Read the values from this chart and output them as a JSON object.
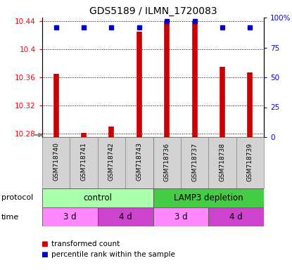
{
  "title": "GDS5189 / ILMN_1720083",
  "samples": [
    "GSM718740",
    "GSM718741",
    "GSM718742",
    "GSM718743",
    "GSM718736",
    "GSM718737",
    "GSM718738",
    "GSM718739"
  ],
  "red_values": [
    10.365,
    10.281,
    10.29,
    10.425,
    10.44,
    10.44,
    10.375,
    10.367
  ],
  "blue_values": [
    92,
    92,
    92,
    92,
    97,
    97,
    92,
    92
  ],
  "ylim_left": [
    10.275,
    10.445
  ],
  "ylim_right": [
    0,
    100
  ],
  "yticks_left": [
    10.28,
    10.32,
    10.36,
    10.4,
    10.44
  ],
  "ytick_labels_left": [
    "10.28",
    "10.32",
    "10.36",
    "10.4",
    "10.44"
  ],
  "yticks_right": [
    0,
    25,
    50,
    75,
    100
  ],
  "ytick_labels_right": [
    "0",
    "25",
    "50",
    "75",
    "100%"
  ],
  "bar_color": "#CC0000",
  "dot_color": "#0000CC",
  "sample_bg": "#D3D3D3",
  "protocol_control_color": "#AAFFAA",
  "protocol_lamp_color": "#44CC44",
  "time_3d_color": "#FF88FF",
  "time_4d_color": "#CC44CC"
}
